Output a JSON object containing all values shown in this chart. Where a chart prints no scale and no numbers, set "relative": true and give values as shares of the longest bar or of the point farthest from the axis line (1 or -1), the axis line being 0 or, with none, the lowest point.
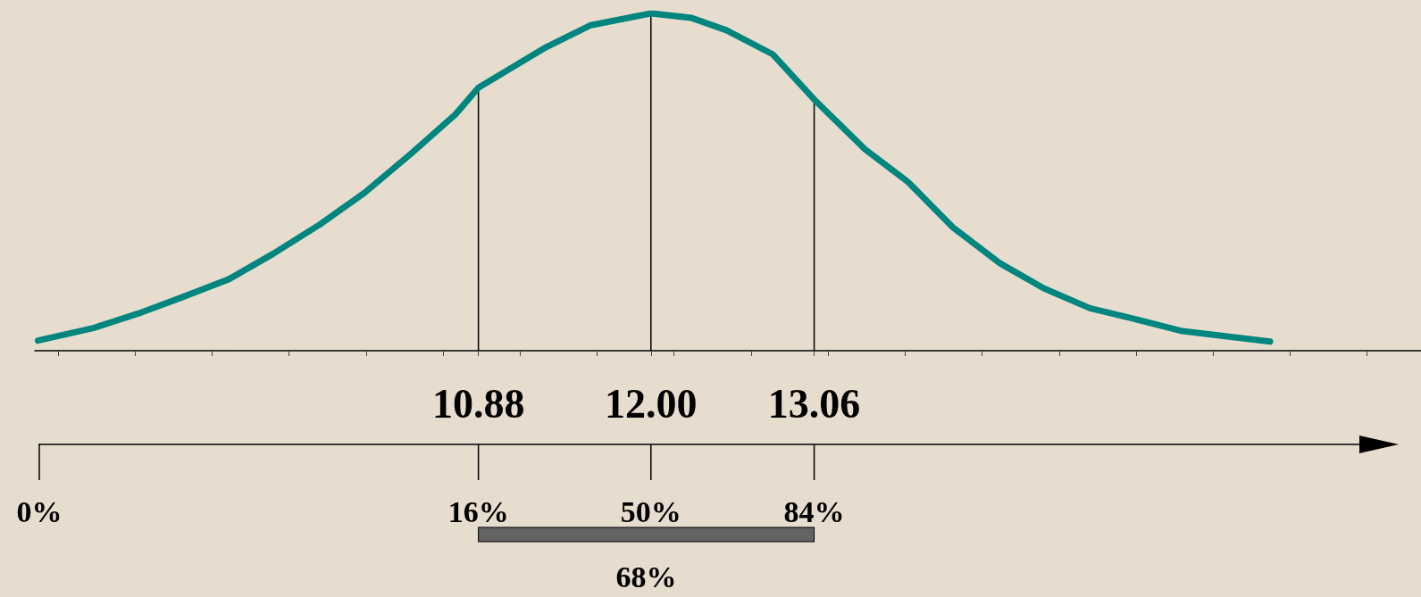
{
  "chart_data": {
    "type": "line",
    "relative": true,
    "color": "#00857f",
    "marker": "none",
    "line_style": "solid",
    "grid": false,
    "x": [
      8.02,
      8.38,
      8.67,
      8.96,
      9.26,
      9.55,
      9.85,
      10.14,
      10.44,
      10.73,
      10.88,
      11.32,
      11.61,
      12,
      12.26,
      12.49,
      12.79,
      13.06,
      13.39,
      13.67,
      13.96,
      14.26,
      14.55,
      14.85,
      15.14,
      15.44,
      15.73,
      16.02
    ],
    "values": [
      0.03,
      0.067,
      0.11,
      0.159,
      0.212,
      0.288,
      0.374,
      0.468,
      0.583,
      0.7,
      0.78,
      0.9,
      0.965,
      1,
      0.987,
      0.95,
      0.879,
      0.745,
      0.597,
      0.5,
      0.366,
      0.261,
      0.185,
      0.126,
      0.094,
      0.059,
      0.043,
      0.027
    ],
    "xlim": [
      8.0,
      17.0
    ],
    "xticks": [
      {
        "value": 8.15,
        "label": null
      },
      {
        "value": 8.65,
        "label": null
      },
      {
        "value": 9.15,
        "label": null
      },
      {
        "value": 9.65,
        "label": null
      },
      {
        "value": 10.15,
        "label": null
      },
      {
        "value": 10.65,
        "label": null
      },
      {
        "value": 11.15,
        "label": null
      },
      {
        "value": 11.65,
        "label": null
      },
      {
        "value": 12.15,
        "label": null
      },
      {
        "value": 12.65,
        "label": null
      },
      {
        "value": 13.15,
        "label": null
      },
      {
        "value": 13.65,
        "label": null
      },
      {
        "value": 14.15,
        "label": null
      },
      {
        "value": 14.65,
        "label": null
      },
      {
        "value": 15.15,
        "label": null
      },
      {
        "value": 15.65,
        "label": null
      },
      {
        "value": 16.15,
        "label": null
      },
      {
        "value": 16.65,
        "label": null
      },
      10.88,
      {
        "value": 12,
        "label": "12.00"
      },
      13.06
    ],
    "ref_lines": [
      {
        "axis": "x",
        "value": 10.88,
        "color": "#000000"
      },
      {
        "axis": "x",
        "value": 12,
        "color": "#000000"
      },
      {
        "axis": "x",
        "value": 13.06,
        "color": "#000000"
      }
    ],
    "annotations": [
      "0%",
      {
        "text": "16%",
        "x": 10.88
      },
      {
        "text": "50%",
        "x": 12
      },
      {
        "text": "84%",
        "x": 13.06
      },
      "68%"
    ]
  }
}
